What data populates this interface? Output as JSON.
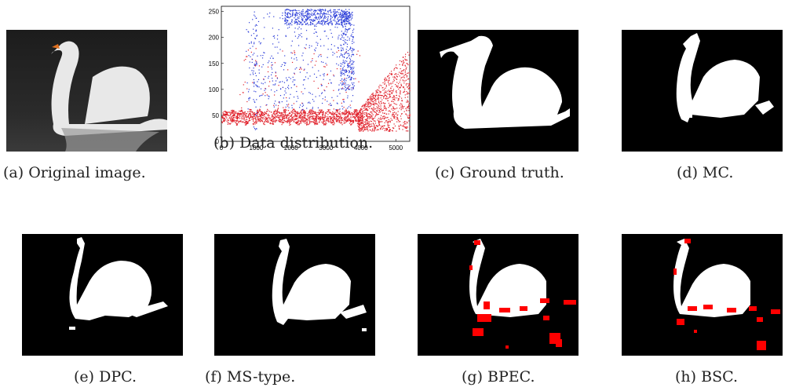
{
  "panels": [
    {
      "caption": "(a) Original image."
    },
    {
      "caption": "(b) Data distribution."
    },
    {
      "caption": "(c) Ground truth."
    },
    {
      "caption": "(d) MC."
    },
    {
      "caption": "(e) DPC."
    },
    {
      "caption": "(f) MS-type."
    },
    {
      "caption": "(g) BPEC."
    },
    {
      "caption": "(h) BSC."
    }
  ],
  "colors": {
    "cluster_blue": "#2a3cd8",
    "cluster_red": "#e0202a",
    "error_red": "#ff0000",
    "swan": "#ffffff",
    "background": "#000000"
  },
  "chart_data": {
    "type": "scatter",
    "title": "",
    "xlabel": "",
    "ylabel": "",
    "xlim": [
      0,
      5400
    ],
    "ylim": [
      0,
      260
    ],
    "xticks": [
      "0",
      "1000",
      "2000",
      "3000",
      "4000",
      "5000"
    ],
    "yticks": [
      "0",
      "50",
      "100",
      "150",
      "200",
      "250"
    ],
    "grid": false,
    "series": [
      {
        "color": "blue",
        "description_points": [
          [
            900,
            220
          ],
          [
            1100,
            150
          ],
          [
            1500,
            240
          ],
          [
            1800,
            250
          ],
          [
            2100,
            245
          ],
          [
            2400,
            230
          ],
          [
            2700,
            250
          ],
          [
            3000,
            240
          ],
          [
            3200,
            252
          ],
          [
            3400,
            248
          ],
          [
            3600,
            235
          ],
          [
            3700,
            200
          ],
          [
            3800,
            170
          ],
          [
            3800,
            120
          ],
          [
            1900,
            200
          ],
          [
            2200,
            180
          ],
          [
            2600,
            210
          ],
          [
            3100,
            190
          ],
          [
            3300,
            160
          ],
          [
            2800,
            130
          ],
          [
            1600,
            120
          ],
          [
            2000,
            100
          ],
          [
            3500,
            110
          ]
        ]
      },
      {
        "color": "red",
        "description_points": [
          [
            100,
            45
          ],
          [
            500,
            50
          ],
          [
            1000,
            48
          ],
          [
            1500,
            42
          ],
          [
            2000,
            46
          ],
          [
            2500,
            44
          ],
          [
            3000,
            47
          ],
          [
            3500,
            45
          ],
          [
            4000,
            40
          ],
          [
            4200,
            90
          ],
          [
            4400,
            110
          ],
          [
            4600,
            70
          ],
          [
            4800,
            130
          ],
          [
            5000,
            100
          ],
          [
            5200,
            150
          ],
          [
            5300,
            60
          ],
          [
            2400,
            120
          ],
          [
            2800,
            150
          ],
          [
            1700,
            80
          ],
          [
            3200,
            100
          ]
        ]
      }
    ]
  }
}
